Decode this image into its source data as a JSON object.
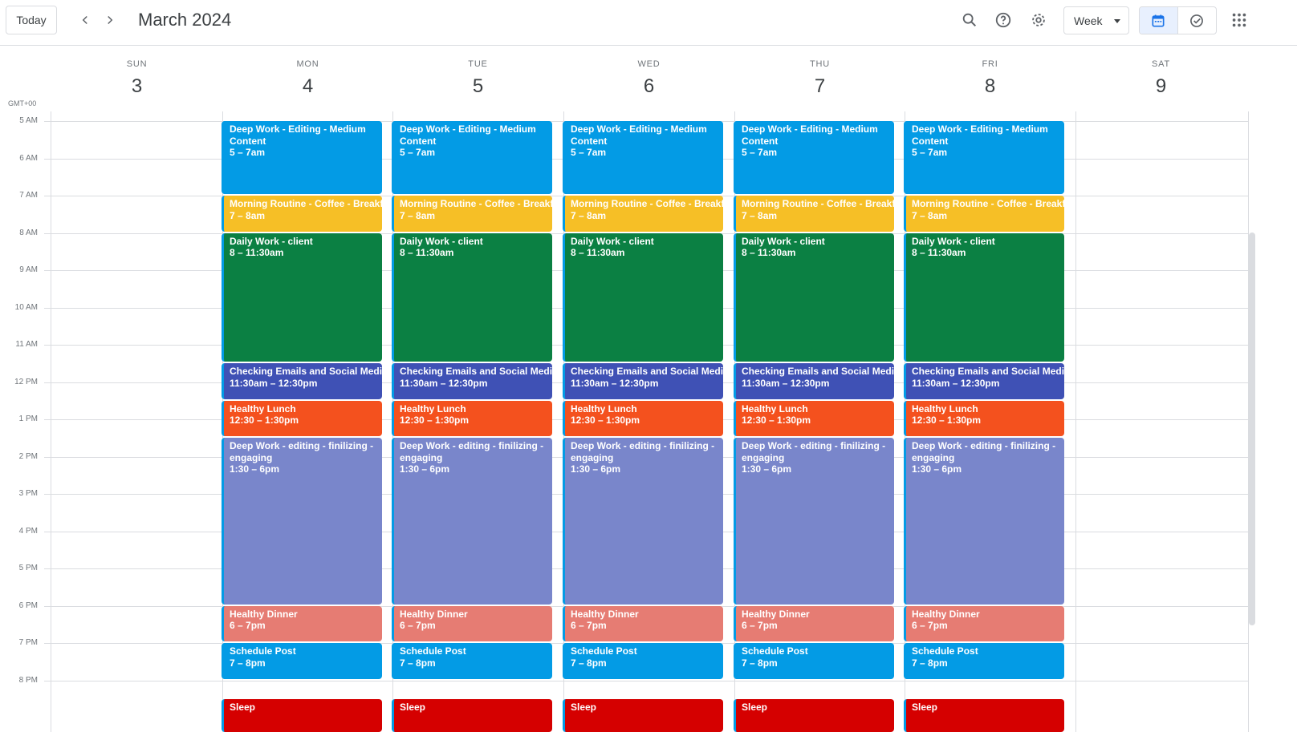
{
  "header": {
    "today_label": "Today",
    "month_title": "March 2024",
    "view_label": "Week"
  },
  "timezone": "GMT+00",
  "days": [
    {
      "dow": "SUN",
      "num": "3"
    },
    {
      "dow": "MON",
      "num": "4"
    },
    {
      "dow": "TUE",
      "num": "5"
    },
    {
      "dow": "WED",
      "num": "6"
    },
    {
      "dow": "THU",
      "num": "7"
    },
    {
      "dow": "FRI",
      "num": "8"
    },
    {
      "dow": "SAT",
      "num": "9"
    }
  ],
  "hours": [
    "5 AM",
    "6 AM",
    "7 AM",
    "8 AM",
    "9 AM",
    "10 AM",
    "11 AM",
    "12 PM",
    "1 PM",
    "2 PM",
    "3 PM",
    "4 PM",
    "5 PM",
    "6 PM",
    "7 PM",
    "8 PM"
  ],
  "weekday_events": [
    {
      "title": "Deep Work - Editing - Medium Content",
      "time": "5 – 7am",
      "color": "#039be5"
    },
    {
      "title": "Morning Routine - Coffee - Breakfast",
      "time": "7 – 8am",
      "color": "#f6bf26"
    },
    {
      "title": "Daily Work - client",
      "time": "8 – 11:30am",
      "color": "#0b8043"
    },
    {
      "title": "Checking Emails and Social Media and",
      "time": "11:30am – 12:30pm",
      "color": "#3f51b5"
    },
    {
      "title": "Healthy Lunch",
      "time": "12:30 – 1:30pm",
      "color": "#f4511e"
    },
    {
      "title": "Deep Work - editing - finilizing - engaging",
      "time": "1:30 – 6pm",
      "color": "#7986cb"
    },
    {
      "title": "Healthy Dinner",
      "time": "6 – 7pm",
      "color": "#e67c73"
    },
    {
      "title": "Schedule Post",
      "time": "7 – 8pm",
      "color": "#039be5"
    },
    {
      "title": "Sleep",
      "time": "",
      "color": "#d50000"
    }
  ]
}
